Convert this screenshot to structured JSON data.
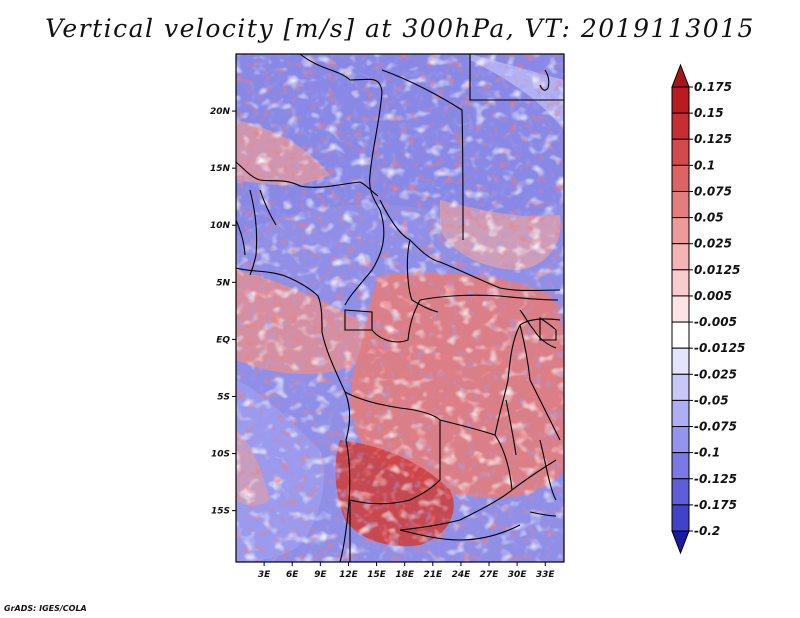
{
  "title": "Vertical velocity [m/s] at 300hPa, VT: 2019113015",
  "credit": "GrADS: IGES/COLA",
  "map": {
    "lon_range": [
      0,
      35
    ],
    "lat_range": [
      -19.5,
      25
    ],
    "lat_ticks": [
      {
        "value": 20,
        "label": "20N"
      },
      {
        "value": 15,
        "label": "15N"
      },
      {
        "value": 10,
        "label": "10N"
      },
      {
        "value": 5,
        "label": "5N"
      },
      {
        "value": 0,
        "label": "EQ"
      },
      {
        "value": -5,
        "label": "5S"
      },
      {
        "value": -10,
        "label": "10S"
      },
      {
        "value": -15,
        "label": "15S"
      }
    ],
    "lon_ticks": [
      {
        "value": 3,
        "label": "3E"
      },
      {
        "value": 6,
        "label": "6E"
      },
      {
        "value": 9,
        "label": "9E"
      },
      {
        "value": 12,
        "label": "12E"
      },
      {
        "value": 15,
        "label": "15E"
      },
      {
        "value": 18,
        "label": "18E"
      },
      {
        "value": 21,
        "label": "21E"
      },
      {
        "value": 24,
        "label": "24E"
      },
      {
        "value": 27,
        "label": "27E"
      },
      {
        "value": 30,
        "label": "30E"
      },
      {
        "value": 33,
        "label": "33E"
      }
    ]
  },
  "colorbar": {
    "levels": [
      {
        "label": "0.175",
        "color": "#b81c22"
      },
      {
        "label": "0.15",
        "color": "#c52f32"
      },
      {
        "label": "0.125",
        "color": "#d24a4a"
      },
      {
        "label": "0.1",
        "color": "#dc6464"
      },
      {
        "label": "0.075",
        "color": "#e47e7e"
      },
      {
        "label": "0.05",
        "color": "#ec9a9a"
      },
      {
        "label": "0.025",
        "color": "#f2b4b4"
      },
      {
        "label": "0.0125",
        "color": "#f8cccc"
      },
      {
        "label": "0.005",
        "color": "#fde4e4"
      },
      {
        "label": "-0.005",
        "color": "#ffffff"
      },
      {
        "label": "-0.0125",
        "color": "#e4e4fc"
      },
      {
        "label": "-0.025",
        "color": "#c8c8f8"
      },
      {
        "label": "-0.05",
        "color": "#aeaef4"
      },
      {
        "label": "-0.075",
        "color": "#9494ec"
      },
      {
        "label": "-0.1",
        "color": "#7a7ae4"
      },
      {
        "label": "-0.125",
        "color": "#5e5ed8"
      },
      {
        "label": "-0.175",
        "color": "#4242c8"
      },
      {
        "label": "-0.2",
        "color": "#2a2ab8"
      }
    ],
    "top_color": "#a81418",
    "bottom_color": "#1a1aa4"
  }
}
